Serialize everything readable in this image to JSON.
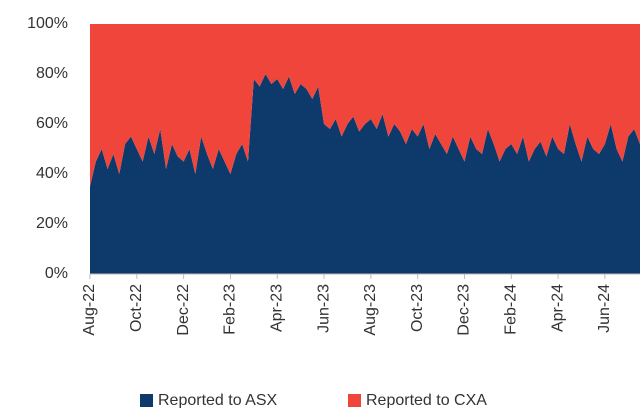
{
  "chart_data": {
    "type": "stacked_area",
    "categories": [
      "Aug-22",
      null,
      null,
      null,
      null,
      null,
      null,
      null,
      "Oct-22",
      null,
      null,
      null,
      null,
      null,
      null,
      null,
      "Dec-22",
      null,
      null,
      null,
      null,
      null,
      null,
      null,
      "Feb-23",
      null,
      null,
      null,
      null,
      null,
      null,
      null,
      "Apr-23",
      null,
      null,
      null,
      null,
      null,
      null,
      null,
      "Jun-23",
      null,
      null,
      null,
      null,
      null,
      null,
      null,
      "Aug-23",
      null,
      null,
      null,
      null,
      null,
      null,
      null,
      "Oct-23",
      null,
      null,
      null,
      null,
      null,
      null,
      null,
      "Dec-23",
      null,
      null,
      null,
      null,
      null,
      null,
      null,
      "Feb-24",
      null,
      null,
      null,
      null,
      null,
      null,
      null,
      "Apr-24",
      null,
      null,
      null,
      null,
      null,
      null,
      null,
      "Jun-24",
      null,
      null,
      null,
      null,
      null,
      null
    ],
    "series": [
      {
        "name": "Reported to ASX",
        "color": "#0d3a6a",
        "values": [
          35,
          45,
          50,
          42,
          48,
          40,
          52,
          55,
          50,
          45,
          55,
          48,
          58,
          42,
          52,
          47,
          45,
          50,
          40,
          55,
          48,
          42,
          50,
          45,
          40,
          48,
          52,
          45,
          78,
          75,
          80,
          76,
          78,
          74,
          79,
          72,
          76,
          74,
          70,
          75,
          60,
          58,
          62,
          55,
          60,
          63,
          57,
          60,
          62,
          58,
          64,
          55,
          60,
          57,
          52,
          58,
          55,
          60,
          50,
          56,
          52,
          48,
          55,
          50,
          45,
          55,
          50,
          48,
          58,
          52,
          45,
          50,
          52,
          48,
          55,
          45,
          50,
          53,
          47,
          55,
          50,
          48,
          60,
          52,
          45,
          55,
          50,
          48,
          52,
          60,
          50,
          45,
          55,
          58,
          52
        ]
      },
      {
        "name": "Reported to CXA",
        "color": "#f0453a",
        "values": [
          65,
          55,
          50,
          58,
          52,
          60,
          48,
          45,
          50,
          55,
          45,
          52,
          42,
          58,
          48,
          53,
          55,
          50,
          60,
          45,
          52,
          58,
          50,
          55,
          60,
          52,
          48,
          55,
          22,
          25,
          20,
          24,
          22,
          26,
          21,
          28,
          24,
          26,
          30,
          25,
          40,
          42,
          38,
          45,
          40,
          37,
          43,
          40,
          38,
          42,
          36,
          45,
          40,
          43,
          48,
          42,
          45,
          40,
          50,
          44,
          48,
          52,
          45,
          50,
          55,
          45,
          50,
          52,
          42,
          48,
          55,
          50,
          48,
          52,
          45,
          55,
          50,
          47,
          53,
          45,
          50,
          52,
          40,
          48,
          55,
          45,
          50,
          52,
          48,
          40,
          50,
          55,
          45,
          42,
          48
        ]
      }
    ],
    "ylim": [
      0,
      100
    ],
    "yticks": [
      {
        "value": 0,
        "label": "0%"
      },
      {
        "value": 20,
        "label": "20%"
      },
      {
        "value": 40,
        "label": "40%"
      },
      {
        "value": 60,
        "label": "60%"
      },
      {
        "value": 80,
        "label": "80%"
      },
      {
        "value": 100,
        "label": "100%"
      }
    ]
  }
}
